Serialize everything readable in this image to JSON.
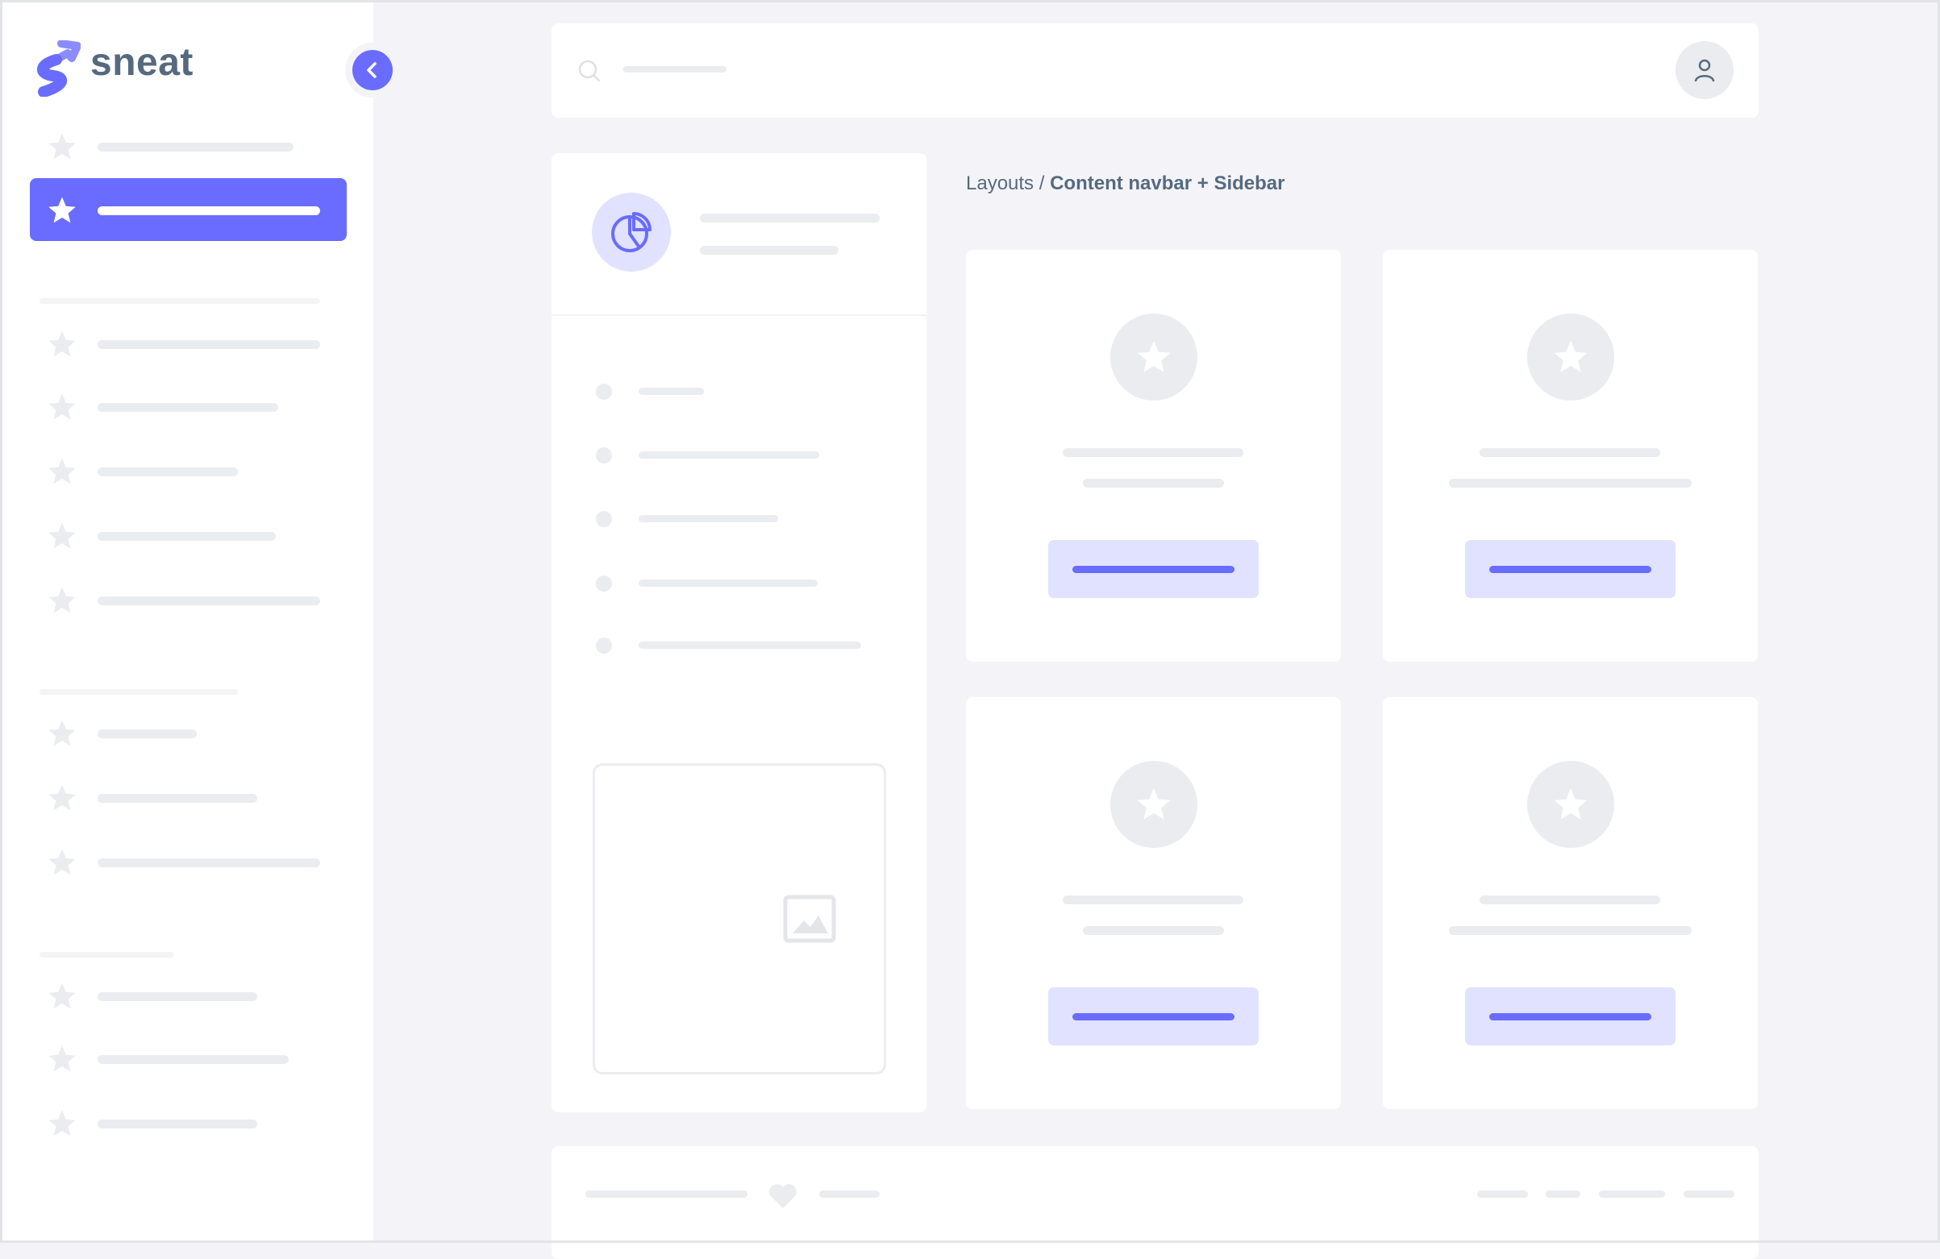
{
  "sidebar": {
    "brand": "sneat",
    "collapse_icon": "chevron-left-icon",
    "item_icon": "star-icon"
  },
  "navbar": {
    "search_icon": "search-icon",
    "user_icon": "user-icon"
  },
  "breadcrumb": {
    "parent": "Layouts",
    "separator": "/",
    "current": "Content navbar + Sidebar"
  },
  "footer": {
    "heart_icon": "heart-icon"
  },
  "colors": {
    "primary": "#696cff",
    "primary_light": "#e1e2ff",
    "text": "#566a7f",
    "background": "#f4f4f8",
    "placeholder": "#ebecf0"
  }
}
